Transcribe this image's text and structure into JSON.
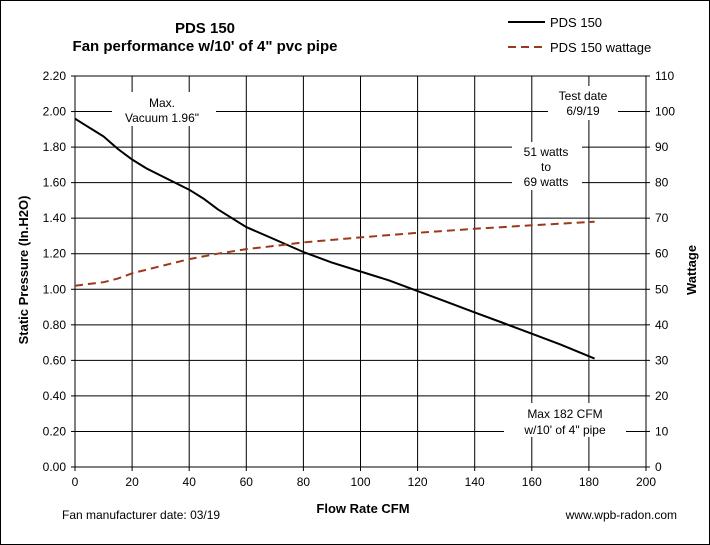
{
  "chart_data": {
    "type": "line",
    "title": "PDS 150",
    "subtitle": "Fan performance w/10' of 4\" pvc pipe",
    "xlabel": "Flow Rate  CFM",
    "ylabel": "Static Pressure (In.H2O)",
    "y2label": "Wattage",
    "xlim": [
      0,
      200
    ],
    "ylim": [
      0,
      2.2
    ],
    "y2lim": [
      0,
      110
    ],
    "x_ticks": [
      "0",
      "20",
      "40",
      "60",
      "80",
      "100",
      "120",
      "140",
      "160",
      "180",
      "200"
    ],
    "y_ticks": [
      "0.00",
      "0.20",
      "0.40",
      "0.60",
      "0.80",
      "1.00",
      "1.20",
      "1.40",
      "1.60",
      "1.80",
      "2.00",
      "2.20"
    ],
    "y2_ticks": [
      "0",
      "10",
      "20",
      "30",
      "40",
      "50",
      "60",
      "70",
      "80",
      "90",
      "100",
      "110"
    ],
    "grid": true,
    "legend_position": "top-right",
    "series": [
      {
        "name": "PDS 150",
        "axis": "left",
        "color": "#000000",
        "style": "solid",
        "x": [
          0,
          4,
          8,
          10,
          15,
          20,
          25,
          30,
          40,
          45,
          50,
          55,
          60,
          70,
          80,
          90,
          100,
          110,
          120,
          130,
          140,
          150,
          160,
          170,
          182
        ],
        "y": [
          1.96,
          1.92,
          1.88,
          1.86,
          1.79,
          1.73,
          1.68,
          1.64,
          1.56,
          1.51,
          1.45,
          1.4,
          1.35,
          1.28,
          1.21,
          1.15,
          1.1,
          1.05,
          0.99,
          0.93,
          0.87,
          0.81,
          0.75,
          0.69,
          0.61
        ]
      },
      {
        "name": "PDS 150 wattage",
        "axis": "right",
        "color": "#9b3a1a",
        "style": "dashed",
        "x": [
          0,
          5,
          10,
          15,
          20,
          30,
          40,
          50,
          60,
          70,
          80,
          100,
          120,
          140,
          160,
          182
        ],
        "y": [
          51,
          51.5,
          52,
          53,
          54.5,
          56.5,
          58.5,
          60,
          61.3,
          62.2,
          63.2,
          64.6,
          65.9,
          67,
          68,
          69
        ]
      }
    ],
    "annotations": {
      "max_vacuum": [
        "Max.",
        "Vacuum 1.96\""
      ],
      "test_date": [
        "Test date",
        "6/9/19"
      ],
      "watts": [
        "51 watts",
        "to",
        "69 watts"
      ],
      "max_cfm": [
        "Max 182 CFM",
        "w/10' of 4\" pipe"
      ]
    },
    "footer": {
      "manufacturer_date": "Fan manufacturer date: 03/19",
      "website": "www.wpb-radon.com"
    }
  }
}
